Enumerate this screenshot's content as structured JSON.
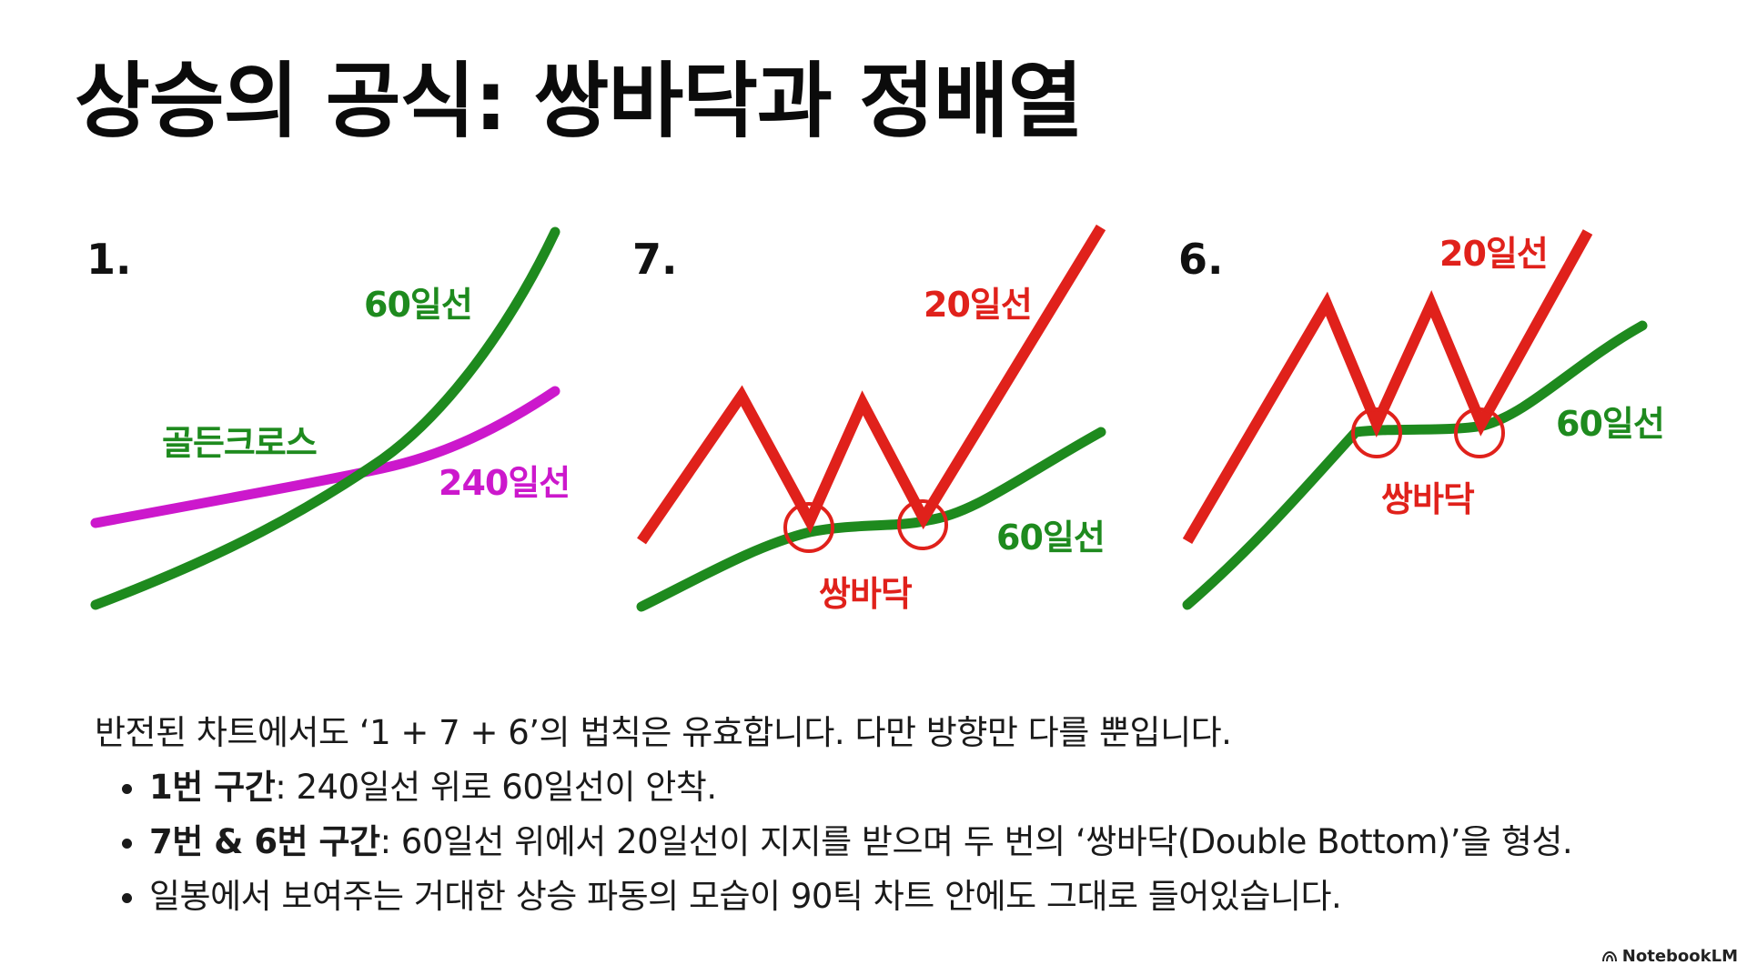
{
  "title": "상승의 공식: 쌍바닥과 정배열",
  "panels": [
    {
      "number": "1.",
      "labels": {
        "line60": "60일선",
        "line240": "240일선",
        "golden_cross": "골든크로스"
      }
    },
    {
      "number": "7.",
      "labels": {
        "line20": "20일선",
        "line60": "60일선",
        "double_bottom": "쌍바닥"
      }
    },
    {
      "number": "6.",
      "labels": {
        "line20": "20일선",
        "line60": "60일선",
        "double_bottom": "쌍바닥"
      }
    }
  ],
  "text": {
    "intro": "반전된 차트에서도 ‘1 + 7 + 6’의 법칙은 유효합니다. 다만 방향만 다를 뿐입니다.",
    "bullets": [
      {
        "bold": "1번 구간",
        "rest": ": 240일선 위로 60일선이 안착."
      },
      {
        "bold": "7번 & 6번 구간",
        "rest": ": 60일선 위에서 20일선이 지지를 받으며 두 번의 ‘쌍바닥(Double Bottom)’을 형성."
      },
      {
        "bold": "",
        "rest": "일봉에서 보여주는 거대한 상승 파동의 모습이 90틱 차트 안에도 그대로 들어있습니다."
      }
    ]
  },
  "footer": {
    "brand": "NotebookLM",
    "icon": "notebooklm-logo-icon"
  },
  "colors": {
    "green": "#1e8a1e",
    "red": "#e0211b",
    "magenta": "#cc18cc",
    "text": "#111111"
  }
}
